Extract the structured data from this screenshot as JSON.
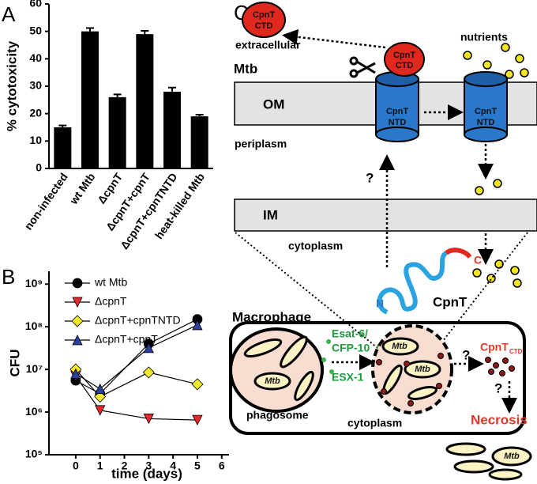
{
  "chart_data": [
    {
      "type": "bar",
      "panel": "A",
      "ylabel": "% cytotoxicity",
      "categories": [
        "non-infected",
        "wt Mtb",
        "ΔcpnT",
        "ΔcpnT+cpnT",
        "ΔcpnT+cpnTNTD",
        "heat-killed Mtb"
      ],
      "values": [
        15,
        50,
        26,
        49,
        28,
        19
      ],
      "errors": [
        0.7,
        1.2,
        1,
        1.2,
        1.5,
        0.6
      ],
      "color": "#000000",
      "ylim": [
        0,
        60
      ],
      "yticks": [
        0,
        10,
        20,
        30,
        40,
        50,
        60
      ]
    },
    {
      "type": "line",
      "panel": "B",
      "xlabel": "time (days)",
      "ylabel": "CFU",
      "log_y": true,
      "legend": "upper right",
      "x": [
        0,
        1,
        3,
        5
      ],
      "series": [
        {
          "name": "wt Mtb",
          "color": "#000000",
          "marker": "circle",
          "values": [
            5500000,
            2700000,
            40000000,
            150000000
          ]
        },
        {
          "name": "ΔcpnT",
          "color": "#e8272a",
          "marker": "triangle-down",
          "values": [
            7000000,
            1100000,
            700000,
            650000
          ]
        },
        {
          "name": "ΔcpnT+cpnTNTD",
          "color": "#f2ea2a",
          "marker": "diamond",
          "values": [
            10000000,
            2300000,
            8500000,
            4500000
          ]
        },
        {
          "name": "ΔcpnT+cpnT",
          "color": "#2b3e9c",
          "marker": "triangle-up",
          "values": [
            8000000,
            3500000,
            32000000,
            110000000
          ]
        }
      ],
      "xlim": [
        -1.1,
        6.3
      ],
      "xticks": [
        0,
        1,
        2,
        3,
        4,
        5,
        6
      ],
      "ylim": [
        100000,
        2000000000
      ],
      "yticks": [
        {
          "value": 100000,
          "label": "10⁵"
        },
        {
          "value": 1000000,
          "label": "10⁶"
        },
        {
          "value": 10000000,
          "label": "10⁷"
        },
        {
          "value": 100000000,
          "label": "10⁸"
        },
        {
          "value": 1000000000,
          "label": "10⁹"
        }
      ]
    }
  ],
  "diagram": {
    "panel": "C",
    "extracellular": "extracellular",
    "mtb": "Mtb",
    "nutrients": "nutrients",
    "ctd_released": [
      "CpnT",
      "CTD"
    ],
    "ctd_bound": [
      "CpnT",
      "CTD"
    ],
    "om": "OM",
    "ntd_left": [
      "CpnT",
      "NTD"
    ],
    "ntd_right": [
      "CpnT",
      "NTD"
    ],
    "periplasm": "periplasm",
    "question_export": "?",
    "im": "IM",
    "cytoplasm_mtb": "cytoplasm",
    "n_term": "N",
    "c_term": "C",
    "cpnt": "CpnT",
    "macrophage": "Macrophage",
    "esat": [
      "Esat-6/",
      "CFP-10"
    ],
    "esx": "ESX-1",
    "phagosome": "phagosome",
    "mtb_labels": [
      "Mtb",
      "Mtb",
      "Mtb",
      "Mtb"
    ],
    "question_release": "?",
    "cpnt_ctd": "CpnT",
    "ctd_sub": "CTD",
    "question_necrosis": "?",
    "necrosis": "Necrosis",
    "cytoplasm_macrophage": "cytoplasm"
  }
}
